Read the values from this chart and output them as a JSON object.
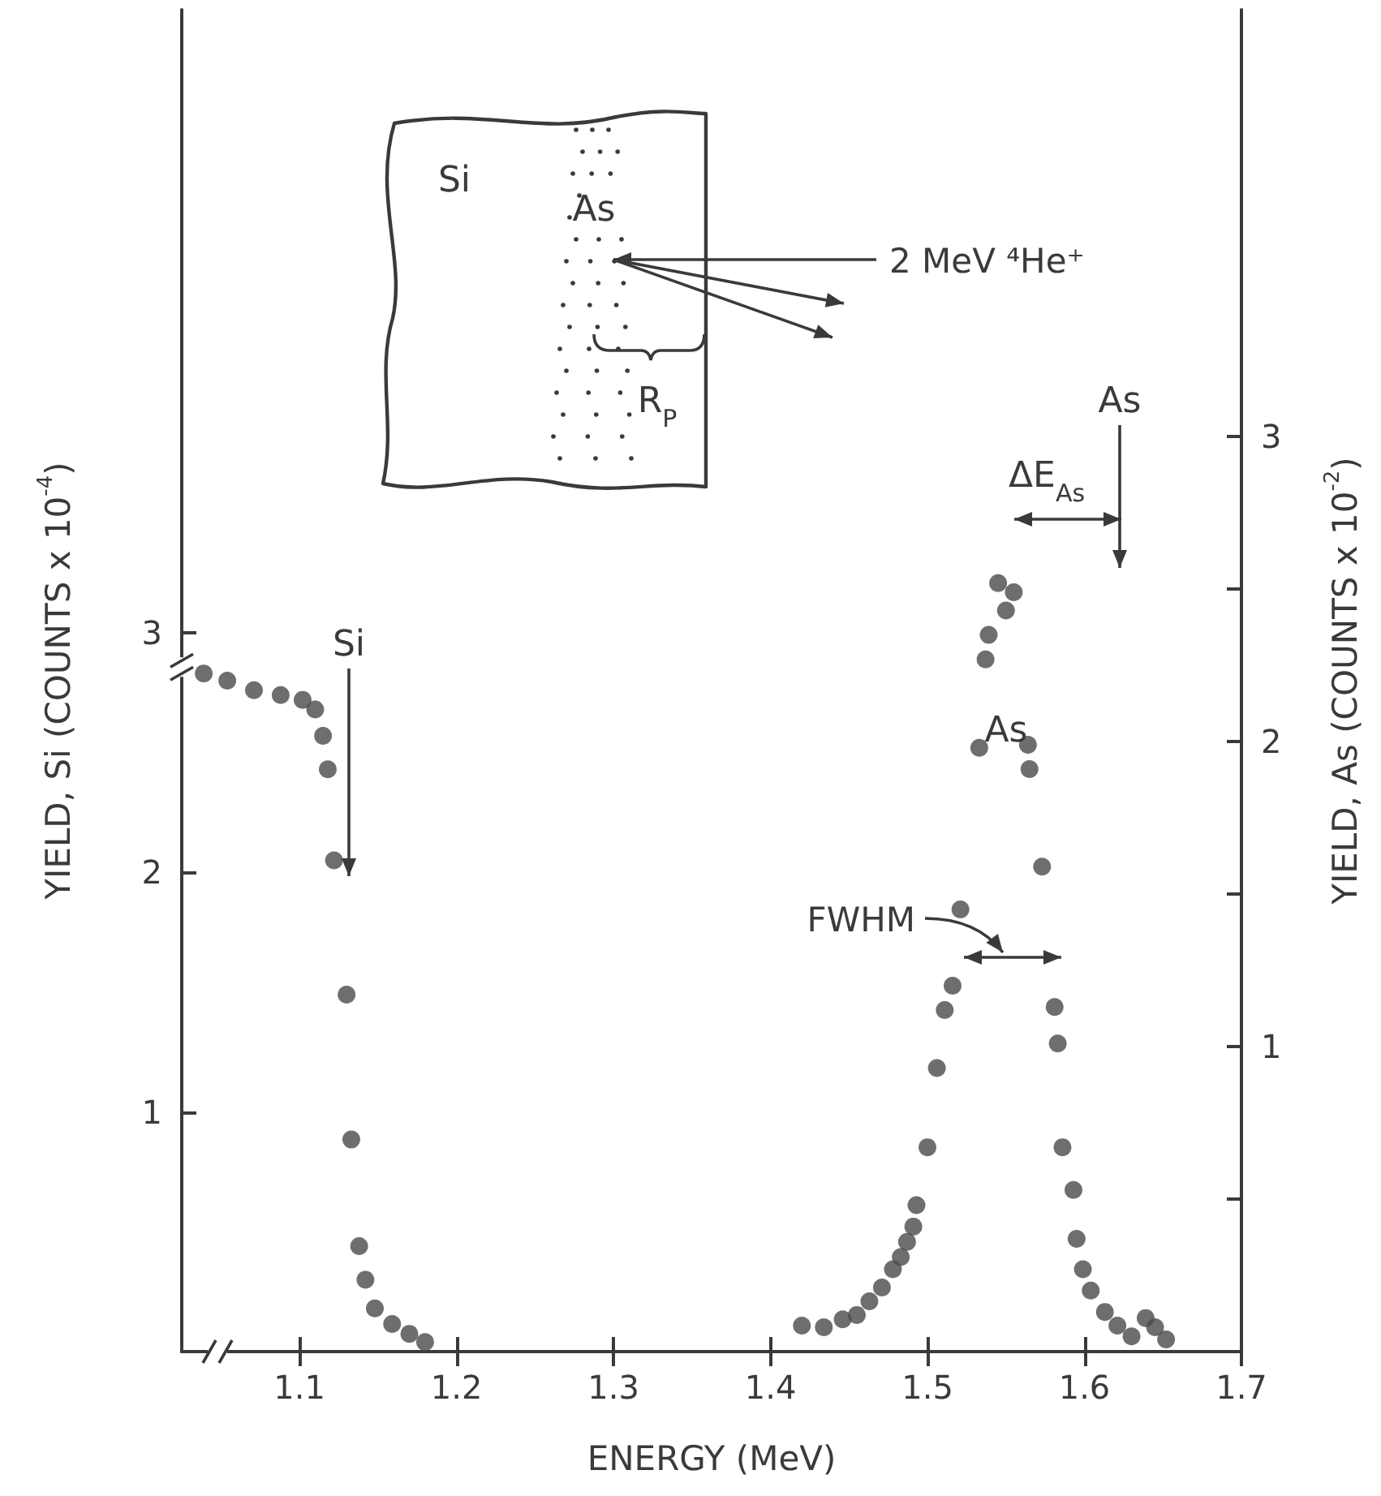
{
  "chart_data": {
    "type": "scatter",
    "xlabel": "ENERGY (MeV)",
    "ylabel": "YIELD, Si (COUNTS x 10$^{-4}$)",
    "y2label": "YIELD, As (COUNTS x 10$^{-2}$)",
    "xlim": [
      1.025,
      1.7
    ],
    "xticks": [
      1.1,
      1.2,
      1.3,
      1.4,
      1.5,
      1.6,
      1.7
    ],
    "ylim": [
      0,
      5.6
    ],
    "yticks": [
      1,
      2,
      3
    ],
    "y2lim": [
      0,
      4.4
    ],
    "y2ticks": [
      {
        "value": 0.5,
        "label": null
      },
      1,
      {
        "value": 1.5,
        "label": null
      },
      2,
      {
        "value": 2.5,
        "label": null
      },
      3
    ],
    "marker": "circle",
    "grid": false,
    "series": [
      {
        "color": "#4a4a4a",
        "x": [
          1.039,
          1.054,
          1.071,
          1.088,
          1.102,
          1.11,
          1.115,
          1.118,
          1.122,
          1.13,
          1.133,
          1.138,
          1.142,
          1.148,
          1.159,
          1.17,
          1.18
        ],
        "values": [
          2.83,
          2.8,
          2.76,
          2.74,
          2.72,
          2.68,
          2.57,
          2.43,
          2.05,
          1.49,
          0.885,
          0.44,
          0.3,
          0.18,
          0.115,
          0.074,
          0.04
        ]
      },
      {
        "color": "#4a4a4a",
        "axis": "y2",
        "x": [
          1.42,
          1.434,
          1.446,
          1.455,
          1.463,
          1.471,
          1.478,
          1.483,
          1.487,
          1.491,
          1.493,
          1.5,
          1.506,
          1.511,
          1.516,
          1.521,
          1.533,
          1.537,
          1.539,
          1.545,
          1.55,
          1.555,
          1.564,
          1.565,
          1.573,
          1.581,
          1.583,
          1.586,
          1.593,
          1.595,
          1.599,
          1.604,
          1.613,
          1.621,
          1.63,
          1.639,
          1.645,
          1.652
        ],
        "values": [
          0.085,
          0.08,
          0.106,
          0.12,
          0.165,
          0.21,
          0.27,
          0.31,
          0.36,
          0.41,
          0.48,
          0.67,
          0.93,
          1.12,
          1.2,
          1.45,
          1.98,
          2.27,
          2.35,
          2.52,
          2.43,
          2.49,
          1.99,
          1.91,
          1.59,
          1.13,
          1.01,
          0.67,
          0.53,
          0.37,
          0.27,
          0.2,
          0.13,
          0.085,
          0.05,
          0.11,
          0.08,
          0.04
        ]
      }
    ],
    "annotations": [
      "Si",
      "As",
      "ΔE$_{As}$",
      "As",
      "FWHM",
      "Si",
      "As",
      "R$_{P}$",
      "2 MeV ⁴He⁺"
    ]
  }
}
